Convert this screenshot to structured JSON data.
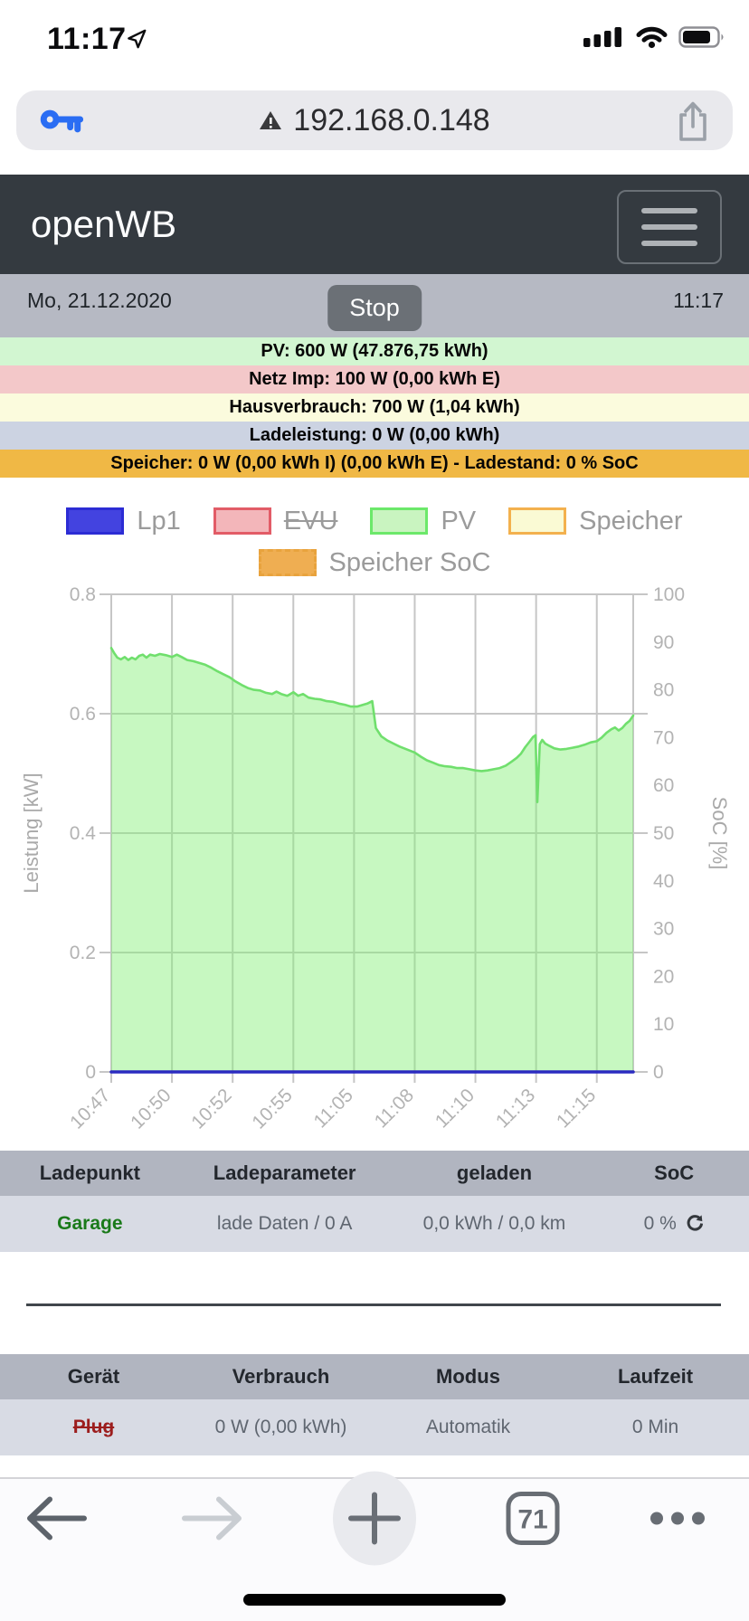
{
  "status_bar": {
    "time": "11:17"
  },
  "address_bar": {
    "url": "192.168.0.148"
  },
  "navbar": {
    "brand": "openWB"
  },
  "info_bar": {
    "date": "Mo, 21.12.2020",
    "stop_label": "Stop",
    "time": "11:17"
  },
  "status_rows": [
    {
      "id": "pv",
      "text": "PV: 600 W (47.876,75 kWh)",
      "bg": "#d2f6d1"
    },
    {
      "id": "netz",
      "text": "Netz Imp: 100 W (0,00 kWh E)",
      "bg": "#f3c8c9"
    },
    {
      "id": "hausverbrauch",
      "text": "Hausverbrauch: 700 W (1,04 kWh)",
      "bg": "#fbfbdd"
    },
    {
      "id": "ladeleistung",
      "text": "Ladeleistung: 0 W (0,00 kWh)",
      "bg": "#ccd3e2"
    },
    {
      "id": "speicher",
      "text": "Speicher: 0 W (0,00 kWh I) (0,00 kWh E) - Ladestand: 0 % SoC",
      "bg": "#f0b845"
    }
  ],
  "legend": {
    "row1": [
      {
        "label": "Lp1",
        "fill": "#4343e0",
        "border": "#2c2cd4",
        "strike": false,
        "dashed": false
      },
      {
        "label": "EVU",
        "fill": "#f3b6ba",
        "border": "#e25c67",
        "strike": true,
        "dashed": false
      },
      {
        "label": "PV",
        "fill": "#c9f4c0",
        "border": "#6ce86a",
        "strike": false,
        "dashed": false
      },
      {
        "label": "Speicher",
        "fill": "#fafad4",
        "border": "#f3b14e",
        "strike": false,
        "dashed": false
      }
    ],
    "row2": [
      {
        "label": "Speicher SoC",
        "fill": "#efae52",
        "border": "#e8a33d",
        "strike": false,
        "dashed": true
      }
    ]
  },
  "chart_data": {
    "type": "area",
    "title": "",
    "x_tick_labels": [
      "10:47",
      "10:50",
      "10:52",
      "10:55",
      "11:05",
      "11:08",
      "11:10",
      "11:13",
      "11:15"
    ],
    "x_domain": [
      0,
      8.6
    ],
    "grid": true,
    "y_left": {
      "label": "Leistung [kW]",
      "min": 0,
      "max": 0.8,
      "ticks": [
        0.8,
        0.6,
        0.4,
        0.2,
        0
      ],
      "tick_labels": [
        "0.8",
        "0.6",
        "0.4",
        "0.2",
        "0"
      ]
    },
    "y_right": {
      "label": "SoC [%]",
      "min": 0,
      "max": 100,
      "ticks": [
        100,
        90,
        80,
        70,
        60,
        50,
        40,
        30,
        20,
        10,
        0
      ]
    },
    "series": [
      {
        "name": "Speicher",
        "type": "line",
        "axis": "left",
        "hidden": false,
        "line_color": "#f3b14e",
        "points": [
          [
            0,
            0
          ],
          [
            8.6,
            0
          ]
        ]
      },
      {
        "name": "Speicher SoC",
        "type": "line",
        "axis": "right",
        "hidden": false,
        "line_color": "#efae52",
        "points": [
          [
            0,
            0
          ],
          [
            8.6,
            0
          ]
        ]
      },
      {
        "name": "EVU",
        "type": "line",
        "axis": "left",
        "hidden": true,
        "line_color": "#e25c67",
        "points": []
      },
      {
        "name": "PV",
        "type": "area",
        "axis": "left",
        "hidden": false,
        "line_color": "#70df6d",
        "fill_color": "rgba(131,239,117,0.45)",
        "points": [
          [
            0,
            0.71
          ],
          [
            0.05,
            0.701
          ],
          [
            0.1,
            0.694
          ],
          [
            0.16,
            0.691
          ],
          [
            0.22,
            0.695
          ],
          [
            0.28,
            0.69
          ],
          [
            0.34,
            0.694
          ],
          [
            0.4,
            0.691
          ],
          [
            0.46,
            0.697
          ],
          [
            0.52,
            0.699
          ],
          [
            0.58,
            0.694
          ],
          [
            0.64,
            0.699
          ],
          [
            0.72,
            0.697
          ],
          [
            0.8,
            0.7
          ],
          [
            0.9,
            0.698
          ],
          [
            1.0,
            0.695
          ],
          [
            1.08,
            0.699
          ],
          [
            1.16,
            0.695
          ],
          [
            1.25,
            0.69
          ],
          [
            1.35,
            0.688
          ],
          [
            1.45,
            0.685
          ],
          [
            1.55,
            0.682
          ],
          [
            1.65,
            0.677
          ],
          [
            1.75,
            0.671
          ],
          [
            1.85,
            0.666
          ],
          [
            1.95,
            0.661
          ],
          [
            2.05,
            0.654
          ],
          [
            2.15,
            0.648
          ],
          [
            2.25,
            0.643
          ],
          [
            2.35,
            0.64
          ],
          [
            2.45,
            0.639
          ],
          [
            2.55,
            0.635
          ],
          [
            2.65,
            0.633
          ],
          [
            2.72,
            0.637
          ],
          [
            2.8,
            0.633
          ],
          [
            2.9,
            0.63
          ],
          [
            3.0,
            0.636
          ],
          [
            3.08,
            0.63
          ],
          [
            3.16,
            0.633
          ],
          [
            3.25,
            0.627
          ],
          [
            3.35,
            0.625
          ],
          [
            3.45,
            0.624
          ],
          [
            3.55,
            0.621
          ],
          [
            3.65,
            0.62
          ],
          [
            3.75,
            0.617
          ],
          [
            3.85,
            0.615
          ],
          [
            3.95,
            0.612
          ],
          [
            4.05,
            0.612
          ],
          [
            4.15,
            0.615
          ],
          [
            4.22,
            0.617
          ],
          [
            4.3,
            0.621
          ],
          [
            4.36,
            0.576
          ],
          [
            4.45,
            0.562
          ],
          [
            4.55,
            0.555
          ],
          [
            4.65,
            0.55
          ],
          [
            4.75,
            0.545
          ],
          [
            4.85,
            0.541
          ],
          [
            5.0,
            0.535
          ],
          [
            5.1,
            0.528
          ],
          [
            5.2,
            0.522
          ],
          [
            5.3,
            0.518
          ],
          [
            5.4,
            0.514
          ],
          [
            5.5,
            0.512
          ],
          [
            5.6,
            0.511
          ],
          [
            5.7,
            0.509
          ],
          [
            5.8,
            0.509
          ],
          [
            5.9,
            0.507
          ],
          [
            6.0,
            0.505
          ],
          [
            6.1,
            0.504
          ],
          [
            6.2,
            0.505
          ],
          [
            6.3,
            0.507
          ],
          [
            6.4,
            0.509
          ],
          [
            6.5,
            0.513
          ],
          [
            6.6,
            0.52
          ],
          [
            6.68,
            0.526
          ],
          [
            6.75,
            0.533
          ],
          [
            6.82,
            0.544
          ],
          [
            6.89,
            0.553
          ],
          [
            6.95,
            0.561
          ],
          [
            6.99,
            0.564
          ],
          [
            7.02,
            0.452
          ],
          [
            7.06,
            0.549
          ],
          [
            7.1,
            0.556
          ],
          [
            7.15,
            0.55
          ],
          [
            7.22,
            0.546
          ],
          [
            7.3,
            0.542
          ],
          [
            7.4,
            0.54
          ],
          [
            7.5,
            0.541
          ],
          [
            7.6,
            0.543
          ],
          [
            7.7,
            0.545
          ],
          [
            7.8,
            0.548
          ],
          [
            7.9,
            0.552
          ],
          [
            8.0,
            0.554
          ],
          [
            8.08,
            0.56
          ],
          [
            8.16,
            0.568
          ],
          [
            8.24,
            0.574
          ],
          [
            8.3,
            0.577
          ],
          [
            8.36,
            0.572
          ],
          [
            8.42,
            0.576
          ],
          [
            8.48,
            0.583
          ],
          [
            8.54,
            0.588
          ],
          [
            8.6,
            0.597
          ]
        ]
      },
      {
        "name": "Lp1",
        "type": "line",
        "axis": "left",
        "hidden": false,
        "line_color": "#2a2ac0",
        "points": [
          [
            0,
            0
          ],
          [
            8.6,
            0
          ]
        ]
      }
    ]
  },
  "charge_table": {
    "headers": [
      "Ladepunkt",
      "Ladeparameter",
      "geladen",
      "SoC"
    ],
    "rows": [
      [
        {
          "text": "Garage",
          "style": "cell-green"
        },
        {
          "text": "lade Daten / 0 A",
          "style": ""
        },
        {
          "text": "0,0 kWh / 0,0 km",
          "style": ""
        },
        {
          "text": "0 %",
          "style": "",
          "icon": "refresh-soc-icon"
        }
      ]
    ]
  },
  "device_table": {
    "headers": [
      "Gerät",
      "Verbrauch",
      "Modus",
      "Laufzeit"
    ],
    "rows": [
      [
        {
          "text": "Plug",
          "style": "cell-red-strike"
        },
        {
          "text": "0 W (0,00 kWh)",
          "style": ""
        },
        {
          "text": "Automatik",
          "style": ""
        },
        {
          "text": "0 Min",
          "style": ""
        }
      ]
    ]
  },
  "footer": {
    "tab_count": "71"
  },
  "colors": {
    "key_icon": "#2a6df3",
    "grid": "#c6c6c6",
    "header_bg": "#343a40"
  }
}
